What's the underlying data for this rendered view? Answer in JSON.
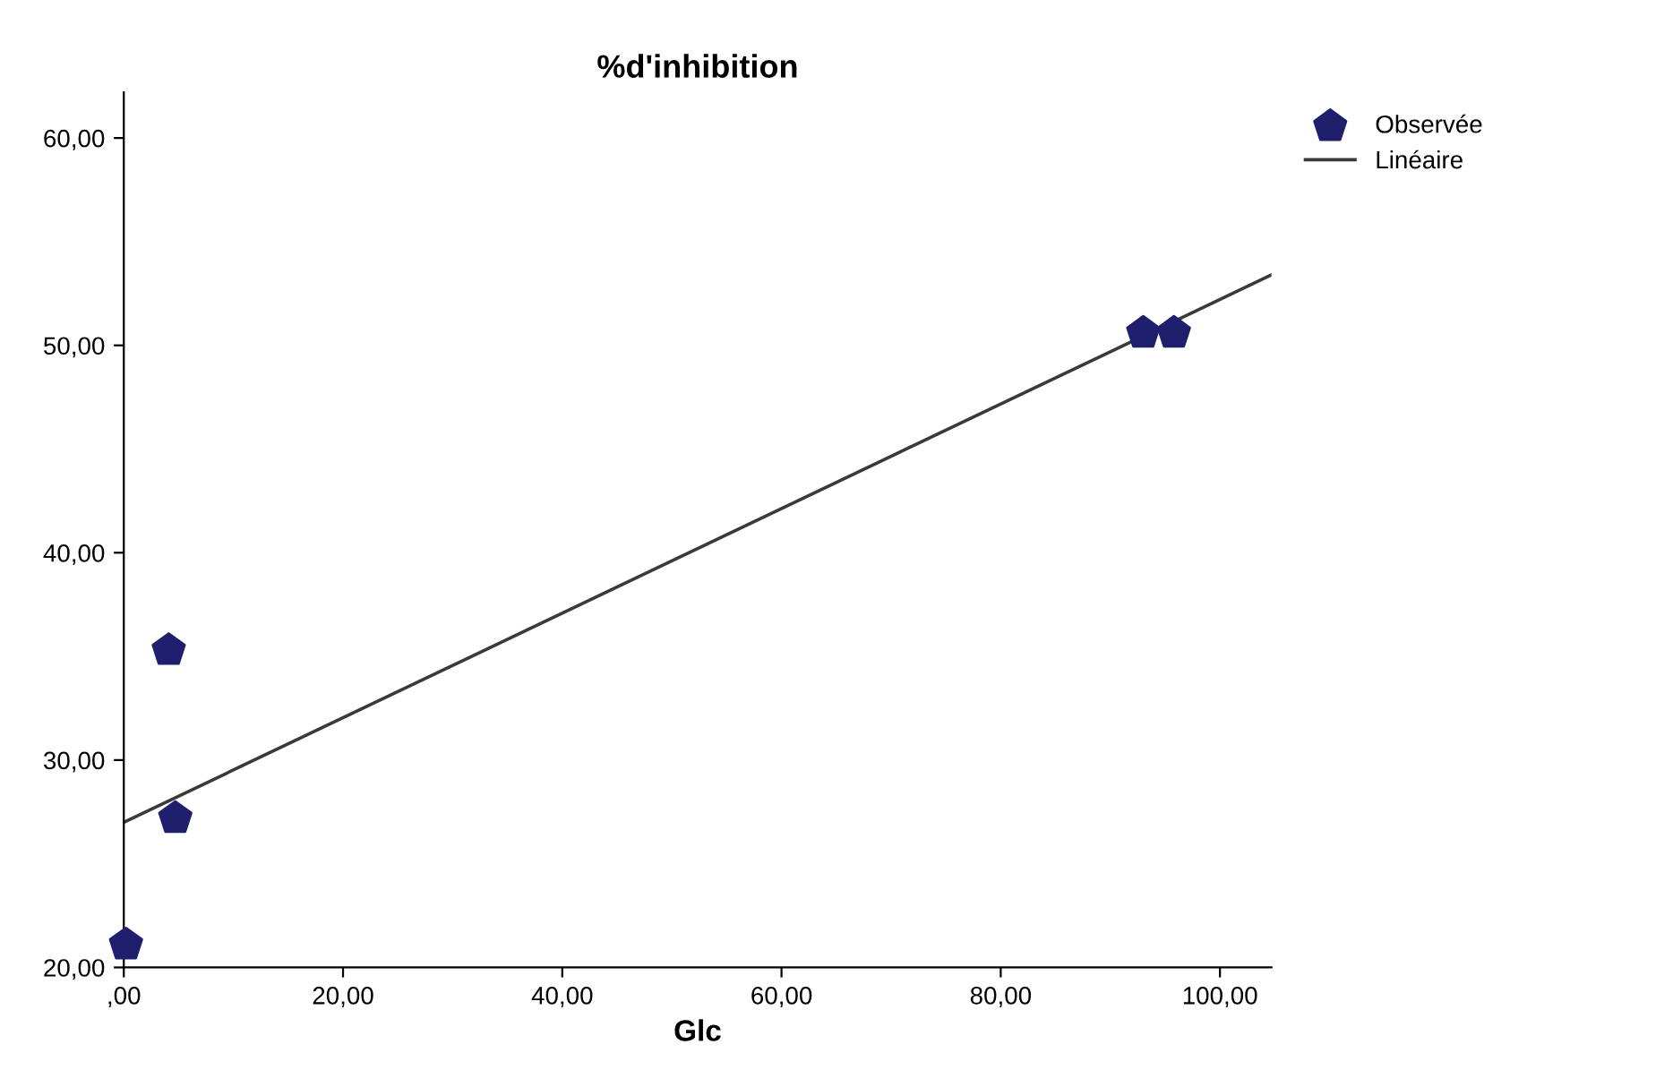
{
  "chart_data": {
    "type": "scatter",
    "title": "%d'inhibition",
    "xlabel": "Glc",
    "series": [
      {
        "name": "Observée",
        "color": "#1f1f6e",
        "x": [
          0.2,
          4.1,
          4.7,
          93,
          95.8
        ],
        "values": [
          21.1,
          35.3,
          27.2,
          50.6,
          50.6
        ]
      },
      {
        "name": "Linéaire",
        "type": "line",
        "color": "#3a3a3a",
        "marker": "none",
        "line_style": "solid",
        "x": [
          0,
          104.7
        ],
        "values": [
          27.0,
          53.4
        ]
      }
    ],
    "xlim": [
      0,
      104.7
    ],
    "ylim": [
      20,
      62.2
    ],
    "xticks": [
      {
        "value": 0,
        "label": ",00"
      },
      {
        "value": 20,
        "label": "20,00"
      },
      {
        "value": 40,
        "label": "40,00"
      },
      {
        "value": 60,
        "label": "60,00"
      },
      {
        "value": 80,
        "label": "80,00"
      },
      {
        "value": 100,
        "label": "100,00"
      }
    ],
    "yticks": [
      {
        "value": 20,
        "label": "20,00"
      },
      {
        "value": 30,
        "label": "30,00"
      },
      {
        "value": 40,
        "label": "40,00"
      },
      {
        "value": 50,
        "label": "50,00"
      },
      {
        "value": 60,
        "label": "60,00"
      }
    ],
    "grid": false,
    "legend": "top right"
  }
}
